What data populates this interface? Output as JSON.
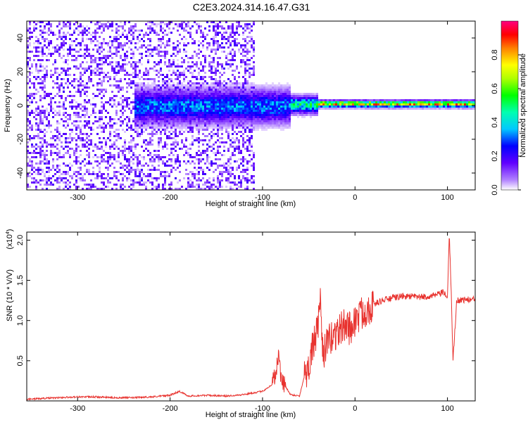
{
  "chart_data": [
    {
      "type": "heatmap",
      "title": "C2E3.2024.314.16.47.G31",
      "xlabel": "Height of straight line (km)",
      "ylabel": "Frequency (Hz)",
      "xlim": [
        -355,
        130
      ],
      "ylim": [
        -50,
        50
      ],
      "xticks": [
        -300,
        -200,
        -100,
        0,
        100
      ],
      "xtick_labels": [
        "-300",
        "-200",
        "-100",
        "0",
        "100"
      ],
      "yticks": [
        -40,
        -20,
        0,
        20,
        40
      ],
      "ytick_labels": [
        "-40",
        "-20",
        "0",
        "20",
        "40"
      ],
      "colorbar": {
        "label": "Normalized spectral amplitude",
        "range": [
          0,
          1
        ],
        "ticks": [
          0.0,
          0.2,
          0.4,
          0.6,
          0.8
        ],
        "tick_labels": [
          "0.0",
          "0.2",
          "0.4",
          "0.6",
          "0.8"
        ],
        "colors": [
          "#ffffff",
          "#8000ff",
          "#0000ff",
          "#00ffff",
          "#00ff00",
          "#ffff00",
          "#ff8000",
          "#ff0000",
          "#ff0080"
        ]
      },
      "bands": [
        {
          "x_start": -355,
          "x_end": -110,
          "character": "broadband noise",
          "max_level": 0.2
        },
        {
          "x_start": -240,
          "x_end": -70,
          "center_hz": 0,
          "half_width_hz": 10,
          "max_level": 0.4
        },
        {
          "x_start": -70,
          "x_end": -40,
          "center_hz": 1,
          "half_width_hz": 5,
          "max_level": 0.6
        },
        {
          "x_start": -40,
          "x_end": 130,
          "center_hz": 1.5,
          "half_width_hz": 2,
          "max_level": 0.95
        }
      ]
    },
    {
      "type": "line",
      "title": "",
      "xlabel": "Height of straight line (km)",
      "ylabel": "SNR (10 * V/V)",
      "y_scale_note": "(x10",
      "y_scale_exp": "4",
      "xlim": [
        -355,
        130
      ],
      "ylim": [
        0,
        2.1
      ],
      "xticks": [
        -300,
        -200,
        -100,
        0,
        100
      ],
      "xtick_labels": [
        "-300",
        "-200",
        "-100",
        "0",
        "100"
      ],
      "yticks": [
        0.5,
        1.0,
        1.5,
        2.0
      ],
      "ytick_labels": [
        "0.5",
        "1.0",
        "1.5",
        "2.0"
      ],
      "series": [
        {
          "color": "#e8322e",
          "x": [
            -355,
            -340,
            -320,
            -300,
            -280,
            -260,
            -240,
            -220,
            -200,
            -190,
            -180,
            -160,
            -140,
            -120,
            -100,
            -90,
            -85,
            -82,
            -80,
            -75,
            -70,
            -60,
            -55,
            -50,
            -45,
            -40,
            -37,
            -35,
            -30,
            -25,
            -20,
            -15,
            -10,
            -5,
            0,
            10,
            20,
            30,
            40,
            50,
            60,
            70,
            80,
            90,
            95,
            100,
            102,
            104,
            106,
            110,
            120,
            130
          ],
          "y": [
            0.02,
            0.03,
            0.04,
            0.05,
            0.05,
            0.04,
            0.04,
            0.05,
            0.07,
            0.12,
            0.06,
            0.07,
            0.06,
            0.08,
            0.12,
            0.2,
            0.4,
            0.6,
            0.25,
            0.18,
            0.08,
            0.06,
            0.3,
            0.45,
            0.7,
            0.9,
            1.25,
            0.6,
            0.7,
            0.8,
            0.85,
            0.9,
            0.95,
            0.9,
            1.0,
            1.12,
            1.2,
            1.25,
            1.28,
            1.3,
            1.3,
            1.29,
            1.3,
            1.32,
            1.35,
            1.3,
            2.05,
            1.4,
            0.5,
            1.25,
            1.26,
            1.26
          ]
        }
      ]
    }
  ]
}
